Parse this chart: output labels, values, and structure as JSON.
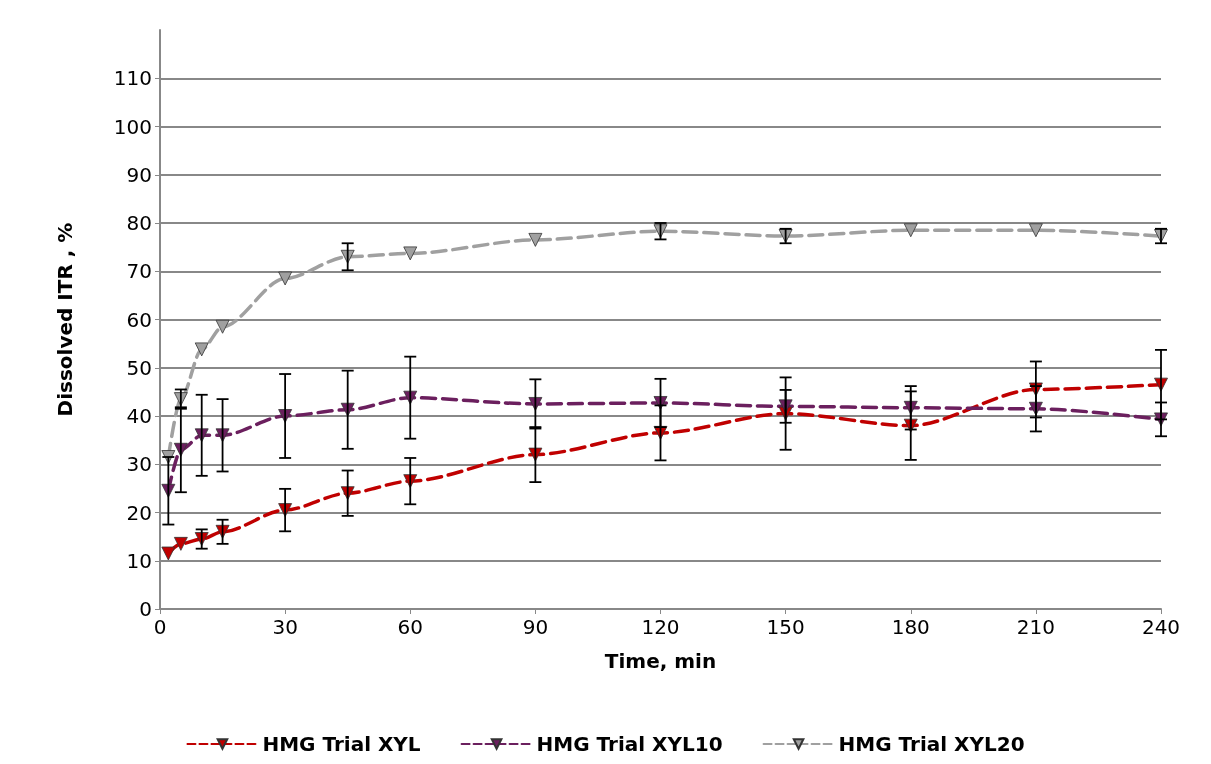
{
  "chart_data": {
    "type": "line",
    "xlabel": "Time, min",
    "ylabel": "Dissolved ITR , %",
    "x": [
      2,
      5,
      10,
      15,
      30,
      45,
      60,
      90,
      120,
      150,
      180,
      210,
      240
    ],
    "xlim": [
      0,
      240
    ],
    "xticks": [
      0,
      30,
      60,
      90,
      120,
      150,
      180,
      210,
      240
    ],
    "ylim": [
      0,
      120
    ],
    "yticks": [
      0,
      10,
      20,
      30,
      40,
      50,
      60,
      70,
      80,
      90,
      100,
      110
    ],
    "grid": "y",
    "legend": "bottom",
    "marker": "triangle",
    "line_style": "dashed",
    "series": [
      {
        "name": "HMG Trial XYL",
        "color": "#c00000",
        "values": [
          11.5,
          13.5,
          14.5,
          16,
          20.5,
          24,
          26.5,
          32,
          36.5,
          40.5,
          38,
          45.5,
          46.5
        ],
        "errors": [
          null,
          null,
          2,
          2.5,
          4.4,
          4.7,
          4.8,
          5.7,
          5.7,
          7.5,
          7.1,
          5.8,
          7.2
        ]
      },
      {
        "name": "HMG Trial XYL10",
        "color": "#6b1f5e",
        "values": [
          24.5,
          33,
          36,
          36,
          40,
          41.3,
          43.8,
          42.5,
          42.7,
          42,
          41.7,
          41.5,
          39.3
        ],
        "errors": [
          7,
          8.8,
          8.4,
          7.5,
          8.7,
          8.1,
          8.5,
          5.1,
          5,
          3.4,
          4.5,
          4.7,
          3.5
        ]
      },
      {
        "name": "HMG Trial XYL20",
        "color": "#a0a0a0",
        "values": [
          31.5,
          43.5,
          53.8,
          58.5,
          68.5,
          73,
          73.7,
          76.5,
          78.3,
          77.3,
          78.5,
          78.5,
          77.3
        ],
        "errors": [
          null,
          2,
          null,
          null,
          null,
          2.8,
          null,
          null,
          1.7,
          1.5,
          null,
          null,
          1.5
        ]
      }
    ]
  }
}
